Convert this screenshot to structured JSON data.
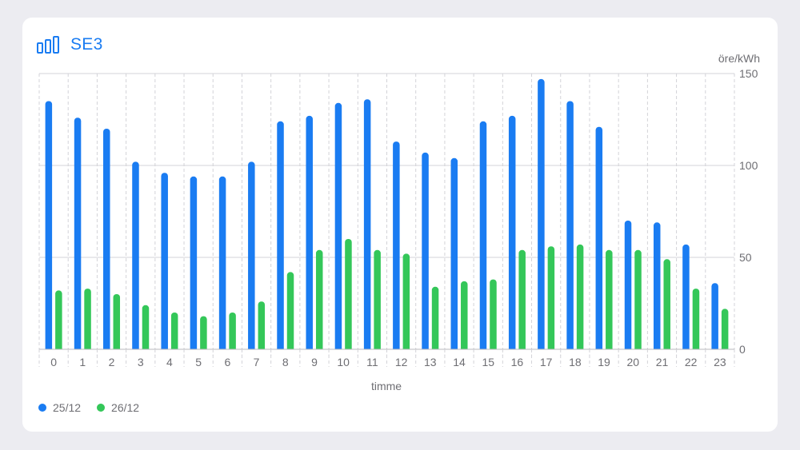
{
  "header": {
    "title": "SE3",
    "icon": "bar-chart-icon"
  },
  "colors": {
    "series_a": "#1a7cf2",
    "series_b": "#34c759"
  },
  "chart_data": {
    "type": "bar",
    "title": "",
    "xlabel": "timme",
    "ylabel": "öre/kWh",
    "ylim": [
      0,
      150
    ],
    "yticks": [
      0,
      50,
      100,
      150
    ],
    "grid": true,
    "legend_position": "bottom-left",
    "categories": [
      "0",
      "1",
      "2",
      "3",
      "4",
      "5",
      "6",
      "7",
      "8",
      "9",
      "10",
      "11",
      "12",
      "13",
      "14",
      "15",
      "16",
      "17",
      "18",
      "19",
      "20",
      "21",
      "22",
      "23"
    ],
    "series": [
      {
        "name": "25/12",
        "values": [
          135,
          126,
          120,
          102,
          96,
          94,
          94,
          102,
          124,
          127,
          134,
          136,
          113,
          107,
          104,
          124,
          127,
          147,
          135,
          121,
          70,
          69,
          57,
          36
        ]
      },
      {
        "name": "26/12",
        "values": [
          32,
          33,
          30,
          24,
          20,
          18,
          20,
          26,
          42,
          54,
          60,
          54,
          52,
          34,
          37,
          38,
          54,
          56,
          57,
          54,
          54,
          49,
          33,
          22
        ]
      }
    ]
  }
}
